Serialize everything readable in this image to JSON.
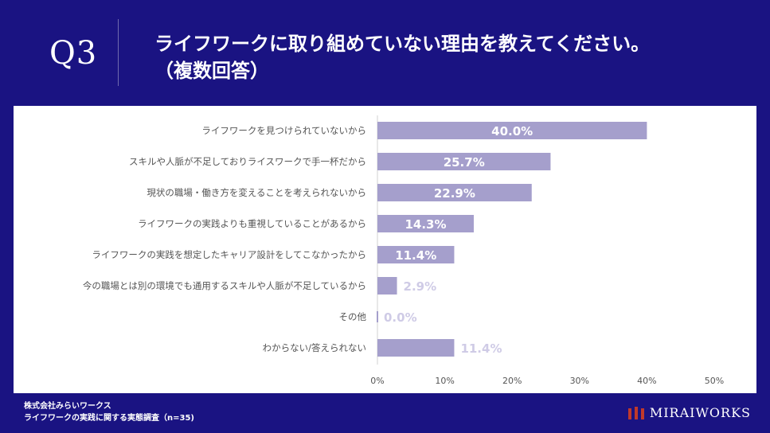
{
  "header": {
    "question_number": "Q3",
    "title_line1": "ライフワークに取り組めていない理由を教えてください。",
    "title_line2": "（複数回答）"
  },
  "footer": {
    "company": "株式会社みらいワークス",
    "survey": "ライフワークの実践に関する実態調査（n=35)"
  },
  "brand": {
    "name": "MIRAIWORKS",
    "logo_color": "#c0392b"
  },
  "colors": {
    "bar": "#a59fcc",
    "label_inside": "#ffffff",
    "label_outside": "#cfcbe6",
    "background": "#1a1382"
  },
  "chart_data": {
    "type": "bar",
    "orientation": "horizontal",
    "title": "ライフワークに取り組めていない理由を教えてください。（複数回答）",
    "categories": [
      "ライフワークを見つけられていないから",
      "スキルや人脈が不足しておりライスワークで手一杯だから",
      "現状の職場・働き方を変えることを考えられないから",
      "ライフワークの実践よりも重視していることがあるから",
      "ライフワークの実践を想定したキャリア設計をしてこなかったから",
      "今の職場とは別の環境でも通用するスキルや人脈が不足しているから",
      "その他",
      "わからない/答えられない"
    ],
    "values": [
      40.0,
      25.7,
      22.9,
      14.3,
      11.4,
      2.9,
      0.0,
      11.4
    ],
    "labels": [
      "40.0%",
      "25.7%",
      "22.9%",
      "14.3%",
      "11.4%",
      "2.9%",
      "0.0%",
      "11.4%"
    ],
    "label_inside": [
      true,
      true,
      true,
      true,
      true,
      false,
      false,
      false
    ],
    "xlim": [
      0,
      50
    ],
    "xticks": [
      "0%",
      "10%",
      "20%",
      "30%",
      "40%",
      "50%"
    ],
    "grid": false,
    "xlabel": "",
    "ylabel": ""
  }
}
